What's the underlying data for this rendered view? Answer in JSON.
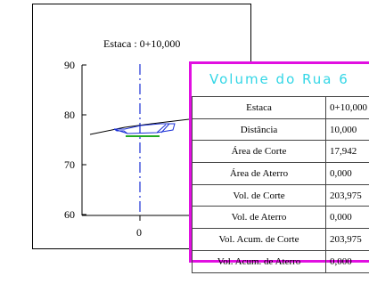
{
  "section": {
    "station_label": "Estaca : 0+10,000",
    "y_ticks": [
      "90",
      "80",
      "70",
      "60"
    ],
    "x_tick": "0"
  },
  "volume_table": {
    "title": "Volume do Rua 6",
    "rows": [
      {
        "label": "Estaca",
        "value": "0+10,000"
      },
      {
        "label": "Distância",
        "value": "10,000"
      },
      {
        "label": "Área de Corte",
        "value": "17,942"
      },
      {
        "label": "Área de Aterro",
        "value": "0,000"
      },
      {
        "label": "Vol. de Corte",
        "value": "203,975"
      },
      {
        "label": "Vol. de Aterro",
        "value": "0,000"
      },
      {
        "label": "Vol. Acum. de Corte",
        "value": "203,975"
      },
      {
        "label": "Vol. Acum. de Aterro",
        "value": "0,000"
      }
    ]
  },
  "colors": {
    "panel_border": "#e10fe1",
    "title_text": "#33d6e6",
    "axis_dash": "#1a2fd6",
    "road_section": "#1a2fd6",
    "subgrade": "#22aa22"
  }
}
